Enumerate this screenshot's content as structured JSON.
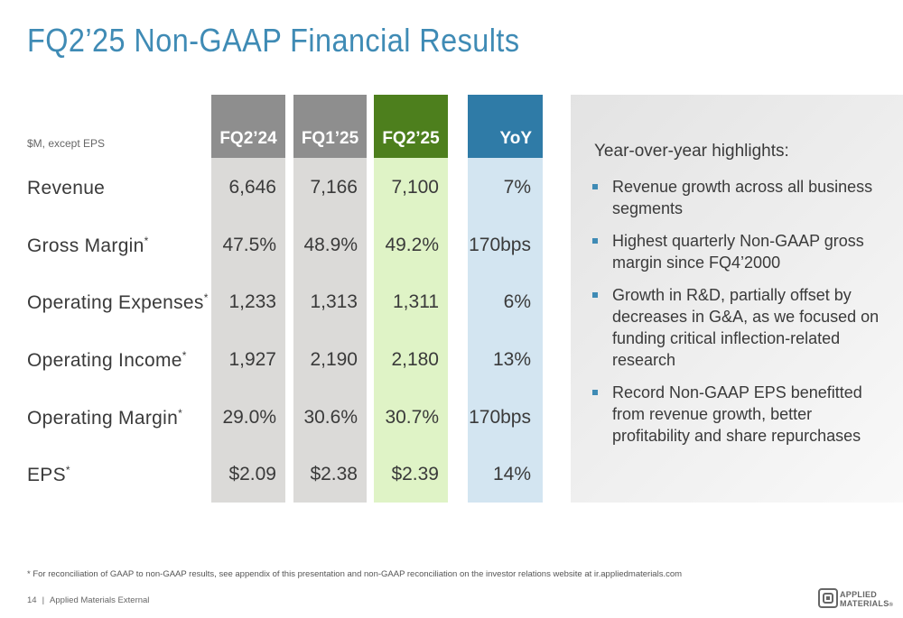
{
  "title": "FQ2’25 Non-GAAP Financial Results",
  "units_note": "$M, except EPS",
  "columns": {
    "fq2_24": "FQ2’24",
    "fq1_25": "FQ1’25",
    "fq2_25": "FQ2’25",
    "yoy": "YoY"
  },
  "rows": [
    {
      "label": "Revenue",
      "mark": "",
      "fq2_24": "6,646",
      "fq1_25": "7,166",
      "fq2_25": "7,100",
      "yoy": "7%"
    },
    {
      "label": "Gross Margin",
      "mark": "*",
      "fq2_24": "47.5%",
      "fq1_25": "48.9%",
      "fq2_25": "49.2%",
      "yoy": "170bps"
    },
    {
      "label": "Operating Expenses",
      "mark": "*",
      "fq2_24": "1,233",
      "fq1_25": "1,313",
      "fq2_25": "1,311",
      "yoy": "6%"
    },
    {
      "label": "Operating Income",
      "mark": "*",
      "fq2_24": "1,927",
      "fq1_25": "2,190",
      "fq2_25": "2,180",
      "yoy": "13%"
    },
    {
      "label": "Operating Margin",
      "mark": "*",
      "fq2_24": "29.0%",
      "fq1_25": "30.6%",
      "fq2_25": "30.7%",
      "yoy": "170bps"
    },
    {
      "label": "EPS",
      "mark": "*",
      "fq2_24": "$2.09",
      "fq1_25": "$2.38",
      "fq2_25": "$2.39",
      "yoy": "14%"
    }
  ],
  "highlights": {
    "heading": "Year-over-year highlights:",
    "items": [
      "Revenue growth across all business segments",
      "Highest quarterly Non-GAAP gross margin since FQ4’2000",
      "Growth in R&D, partially offset by decreases in G&A, as we focused on funding critical inflection-related research",
      "Record Non-GAAP EPS benefitted from revenue growth, better profitability and share repurchases"
    ]
  },
  "footnote": "* For reconciliation of GAAP to non-GAAP results, see appendix of this presentation and non-GAAP reconciliation on the investor relations website at ir.appliedmaterials.com",
  "footer": {
    "page_number": "14",
    "separator": "|",
    "classification": "Applied Materials External"
  },
  "logo": {
    "line1": "APPLIED",
    "line2": "MATERIALS",
    "mark": "®"
  },
  "colors": {
    "title": "#3f8bb5",
    "prior_header": "#8e8e8e",
    "prior_body": "#dbdad8",
    "current_header": "#4d7f1d",
    "current_body": "#dff3c6",
    "yoy_header": "#2f7ba7",
    "yoy_body": "#d3e5f1"
  }
}
